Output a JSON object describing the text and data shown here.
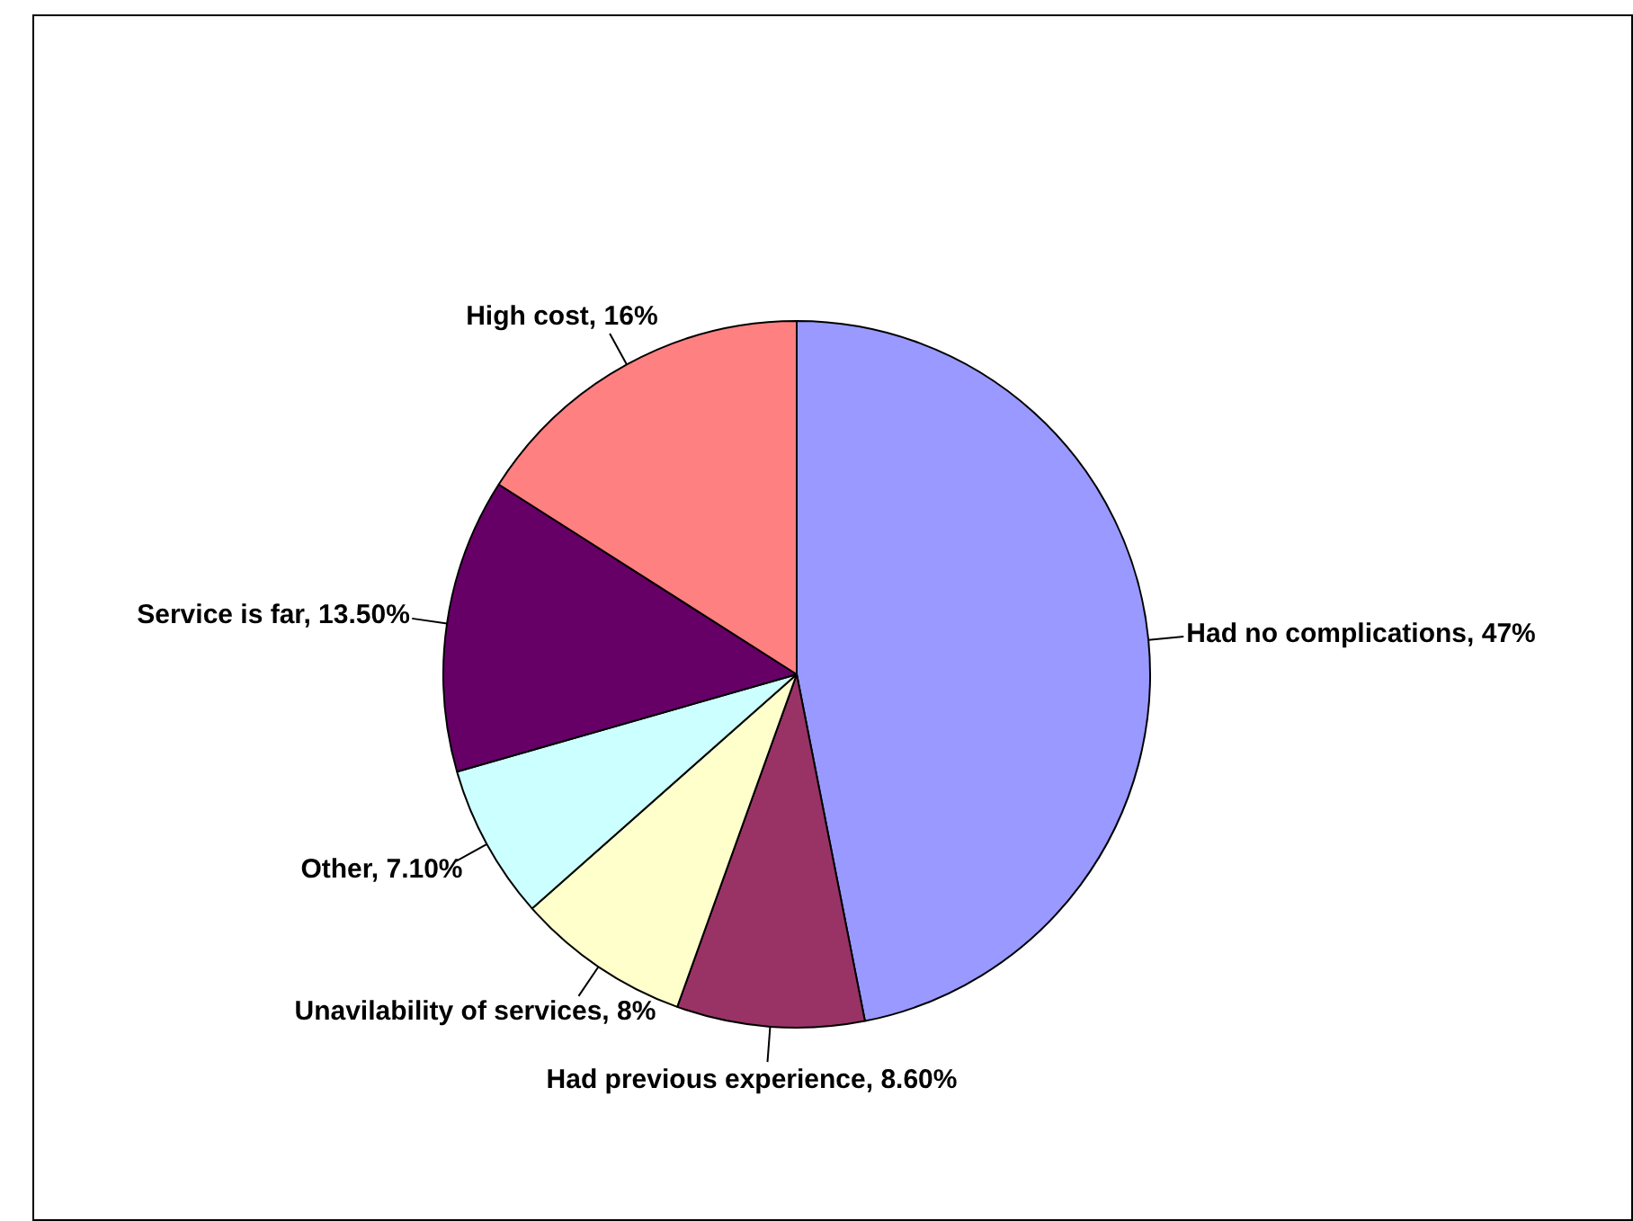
{
  "chart_data": {
    "type": "pie",
    "categories": [
      "Had no complications",
      "Had previous experience",
      "Unavilability of services",
      "Other",
      "Service is far",
      "High cost"
    ],
    "values": [
      47,
      8.6,
      8,
      7.1,
      13.5,
      16
    ],
    "value_labels": [
      "47%",
      "8.60%",
      "8%",
      "7.10%",
      "13.50%",
      "16%"
    ],
    "colors": [
      "#9999ff",
      "#993366",
      "#ffffcc",
      "#ccffff",
      "#660066",
      "#ff8080"
    ],
    "legend": false
  }
}
